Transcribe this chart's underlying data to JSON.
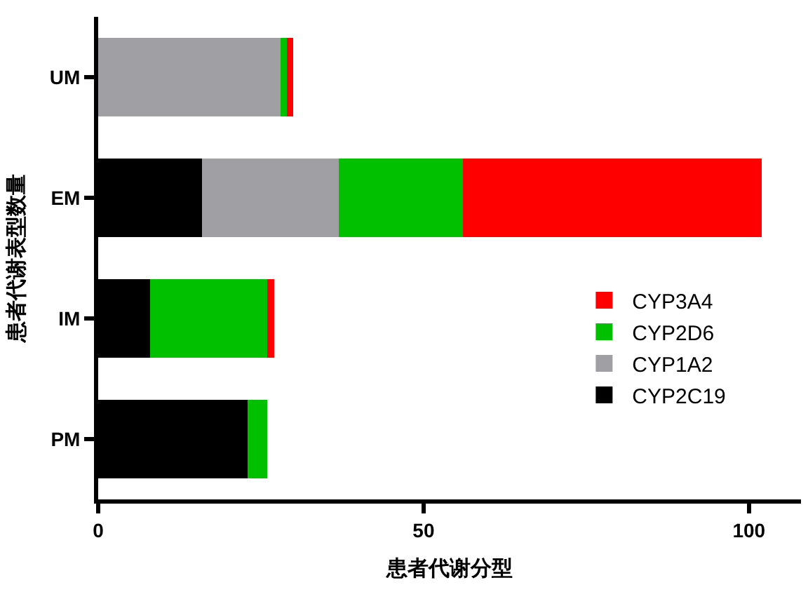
{
  "chart_data": {
    "type": "bar",
    "orientation": "horizontal",
    "stacked": true,
    "categories": [
      "UM",
      "EM",
      "IM",
      "PM"
    ],
    "series": [
      {
        "name": "CYP2C19",
        "color": "#000000",
        "values": [
          0,
          16,
          8,
          23
        ]
      },
      {
        "name": "CYP1A2",
        "color": "#a0a0a4",
        "values": [
          28,
          21,
          0,
          0
        ]
      },
      {
        "name": "CYP2D6",
        "color": "#00c000",
        "values": [
          1,
          19,
          18,
          3
        ]
      },
      {
        "name": "CYP3A4",
        "color": "#ff0000",
        "values": [
          1,
          46,
          1,
          0
        ]
      }
    ],
    "xlabel": "患者代谢分型",
    "ylabel": "患者代谢表型数量",
    "xlim": [
      0,
      108
    ],
    "xticks": [
      0,
      50,
      100
    ],
    "legend": "right"
  }
}
